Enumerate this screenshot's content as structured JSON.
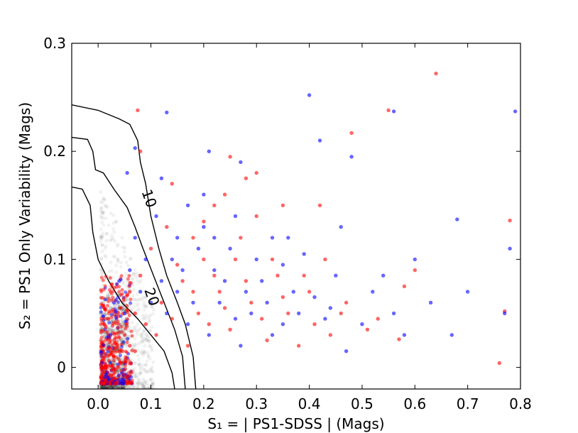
{
  "chart_data": {
    "type": "scatter",
    "xlabel": "S₁ = | PS1-SDSS | (Mags)",
    "ylabel": "S₂ = PS1 Only Variability (Mags)",
    "xlim": [
      -0.05,
      0.8
    ],
    "ylim": [
      -0.02,
      0.3
    ],
    "x_ticks": [
      0.0,
      0.1,
      0.2,
      0.3,
      0.4,
      0.5,
      0.6,
      0.7,
      0.8
    ],
    "x_tick_labels": [
      "0.0",
      "0.1",
      "0.2",
      "0.3",
      "0.4",
      "0.5",
      "0.6",
      "0.7",
      "0.8"
    ],
    "y_ticks": [
      0.0,
      0.1,
      0.2,
      0.3
    ],
    "y_tick_labels": [
      "0",
      "0.1",
      "0.2",
      "0.3"
    ],
    "grid": false,
    "legend": "none",
    "contours": [
      {
        "label": "",
        "points": [
          [
            -0.05,
            0.243
          ],
          [
            0.0,
            0.238
          ],
          [
            0.04,
            0.23
          ],
          [
            0.06,
            0.225
          ],
          [
            0.075,
            0.21
          ],
          [
            0.08,
            0.19
          ],
          [
            0.09,
            0.17
          ],
          [
            0.1,
            0.14
          ],
          [
            0.115,
            0.11
          ],
          [
            0.13,
            0.085
          ],
          [
            0.15,
            0.06
          ],
          [
            0.165,
            0.04
          ],
          [
            0.18,
            0.01
          ],
          [
            0.185,
            -0.02
          ]
        ]
      },
      {
        "label": "10",
        "label_pos": [
          0.095,
          0.156
        ],
        "points": [
          [
            -0.05,
            0.213
          ],
          [
            -0.02,
            0.211
          ],
          [
            -0.01,
            0.2
          ],
          [
            -0.005,
            0.183
          ],
          [
            0.01,
            0.18
          ],
          [
            0.03,
            0.165
          ],
          [
            0.055,
            0.148
          ],
          [
            0.07,
            0.13
          ],
          [
            0.085,
            0.11
          ],
          [
            0.105,
            0.085
          ],
          [
            0.125,
            0.06
          ],
          [
            0.145,
            0.035
          ],
          [
            0.16,
            0.01
          ],
          [
            0.165,
            -0.02
          ]
        ]
      },
      {
        "label": "20",
        "label_pos": [
          0.1,
          0.065
        ],
        "points": [
          [
            -0.05,
            0.167
          ],
          [
            -0.03,
            0.165
          ],
          [
            -0.015,
            0.15
          ],
          [
            -0.01,
            0.125
          ],
          [
            0.0,
            0.1
          ],
          [
            0.02,
            0.08
          ],
          [
            0.045,
            0.06
          ],
          [
            0.075,
            0.045
          ],
          [
            0.1,
            0.03
          ],
          [
            0.125,
            0.015
          ],
          [
            0.14,
            -0.005
          ],
          [
            0.145,
            -0.02
          ]
        ]
      }
    ],
    "series": [
      {
        "color": "#0000ff",
        "points": [
          [
            0.4,
            0.252
          ],
          [
            0.13,
            0.236
          ],
          [
            0.56,
            0.237
          ],
          [
            0.79,
            0.237
          ],
          [
            0.42,
            0.21
          ],
          [
            0.21,
            0.2
          ],
          [
            0.07,
            0.203
          ],
          [
            0.055,
            0.18
          ],
          [
            0.12,
            0.175
          ],
          [
            0.48,
            0.195
          ],
          [
            0.27,
            0.19
          ],
          [
            0.17,
            0.15
          ],
          [
            0.68,
            0.137
          ],
          [
            0.46,
            0.13
          ],
          [
            0.36,
            0.12
          ],
          [
            0.6,
            0.1
          ],
          [
            0.54,
            0.085
          ],
          [
            0.78,
            0.11
          ],
          [
            0.35,
            0.095
          ],
          [
            0.45,
            0.085
          ],
          [
            0.3,
            0.1
          ],
          [
            0.25,
            0.11
          ],
          [
            0.2,
            0.13
          ],
          [
            0.15,
            0.12
          ],
          [
            0.22,
            0.09
          ],
          [
            0.28,
            0.07
          ],
          [
            0.32,
            0.06
          ],
          [
            0.38,
            0.05
          ],
          [
            0.43,
            0.045
          ],
          [
            0.5,
            0.04
          ],
          [
            0.56,
            0.05
          ],
          [
            0.63,
            0.06
          ],
          [
            0.7,
            0.07
          ],
          [
            0.77,
            0.05
          ],
          [
            0.67,
            0.03
          ],
          [
            0.47,
            0.015
          ],
          [
            0.33,
            0.03
          ],
          [
            0.26,
            0.045
          ],
          [
            0.18,
            0.06
          ],
          [
            0.12,
            0.08
          ],
          [
            0.09,
            0.1
          ],
          [
            0.07,
            0.12
          ],
          [
            0.11,
            0.14
          ],
          [
            0.16,
            0.09
          ],
          [
            0.24,
            0.08
          ],
          [
            0.29,
            0.05
          ],
          [
            0.35,
            0.04
          ],
          [
            0.41,
            0.065
          ],
          [
            0.58,
            0.03
          ],
          [
            0.52,
            0.07
          ],
          [
            0.14,
            0.1
          ],
          [
            0.19,
            0.11
          ],
          [
            0.23,
            0.06
          ],
          [
            0.31,
            0.08
          ],
          [
            0.37,
            0.07
          ],
          [
            0.44,
            0.055
          ],
          [
            0.06,
            0.09
          ],
          [
            0.08,
            0.07
          ],
          [
            0.1,
            0.06
          ],
          [
            0.13,
            0.05
          ],
          [
            0.17,
            0.04
          ],
          [
            0.21,
            0.03
          ],
          [
            0.27,
            0.02
          ],
          [
            0.2,
            0.16
          ],
          [
            0.26,
            0.14
          ],
          [
            0.33,
            0.12
          ],
          [
            0.39,
            0.105
          ],
          [
            0.03,
            0.06
          ],
          [
            0.04,
            0.08
          ],
          [
            0.05,
            0.05
          ],
          [
            0.15,
            0.07
          ],
          [
            0.22,
            0.12
          ]
        ]
      },
      {
        "color": "#ff0000",
        "points": [
          [
            0.64,
            0.272
          ],
          [
            0.075,
            0.238
          ],
          [
            0.55,
            0.238
          ],
          [
            0.48,
            0.217
          ],
          [
            0.08,
            0.2
          ],
          [
            0.25,
            0.195
          ],
          [
            0.14,
            0.17
          ],
          [
            0.3,
            0.18
          ],
          [
            0.42,
            0.15
          ],
          [
            0.6,
            0.09
          ],
          [
            0.78,
            0.136
          ],
          [
            0.57,
            0.026
          ],
          [
            0.76,
            0.004
          ],
          [
            0.77,
            0.052
          ],
          [
            0.3,
            0.14
          ],
          [
            0.22,
            0.15
          ],
          [
            0.18,
            0.12
          ],
          [
            0.26,
            0.1
          ],
          [
            0.34,
            0.085
          ],
          [
            0.4,
            0.07
          ],
          [
            0.47,
            0.06
          ],
          [
            0.53,
            0.045
          ],
          [
            0.29,
            0.06
          ],
          [
            0.36,
            0.05
          ],
          [
            0.23,
            0.07
          ],
          [
            0.16,
            0.08
          ],
          [
            0.12,
            0.06
          ],
          [
            0.19,
            0.05
          ],
          [
            0.25,
            0.035
          ],
          [
            0.32,
            0.025
          ],
          [
            0.38,
            0.02
          ],
          [
            0.44,
            0.03
          ],
          [
            0.1,
            0.11
          ],
          [
            0.13,
            0.13
          ],
          [
            0.2,
            0.1
          ],
          [
            0.27,
            0.12
          ],
          [
            0.33,
            0.1
          ],
          [
            0.09,
            0.04
          ],
          [
            0.11,
            0.03
          ],
          [
            0.14,
            0.045
          ],
          [
            0.17,
            0.02
          ],
          [
            0.21,
            0.04
          ],
          [
            0.24,
            0.055
          ],
          [
            0.28,
            0.08
          ],
          [
            0.35,
            0.065
          ],
          [
            0.41,
            0.04
          ],
          [
            0.46,
            0.05
          ],
          [
            0.51,
            0.035
          ],
          [
            0.06,
            0.07
          ],
          [
            0.07,
            0.05
          ],
          [
            0.08,
            0.085
          ],
          [
            0.15,
            0.095
          ],
          [
            0.18,
            0.07
          ],
          [
            0.22,
            0.085
          ],
          [
            0.31,
            0.045
          ],
          [
            0.39,
            0.085
          ],
          [
            0.43,
            0.1
          ],
          [
            0.05,
            0.03
          ],
          [
            0.06,
            0.02
          ],
          [
            0.07,
            0.015
          ],
          [
            0.2,
            0.135
          ],
          [
            0.24,
            0.16
          ],
          [
            0.28,
            0.175
          ],
          [
            0.35,
            0.15
          ],
          [
            0.58,
            0.075
          ]
        ]
      }
    ]
  }
}
